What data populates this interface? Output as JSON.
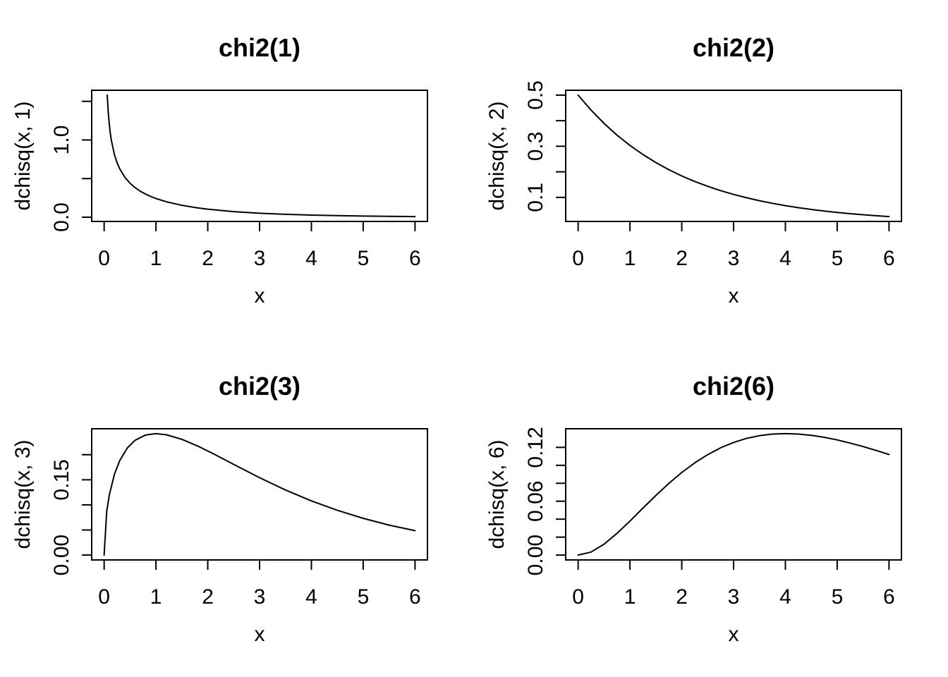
{
  "figure": {
    "background": "#ffffff",
    "foreground": "#000000",
    "description": "2x2 grid of chi-squared probability density curves (R base graphics style)"
  },
  "chart_data": [
    {
      "type": "line",
      "title": "chi2(1)",
      "xlabel": "x",
      "ylabel": "dchisq(x, 1)",
      "line_color": "#000000",
      "grid": false,
      "legend": null,
      "xlim": [
        0,
        6
      ],
      "ylim": [
        0.0081,
        1.5805
      ],
      "x_ticks": [
        0,
        1,
        2,
        3,
        4,
        5,
        6
      ],
      "x_tick_labels": [
        "0",
        "1",
        "2",
        "3",
        "4",
        "5",
        "6"
      ],
      "y_ticks": [
        0.0,
        0.5,
        1.0,
        1.5
      ],
      "y_tick_labels": [
        "0.0",
        "",
        "1.0",
        ""
      ],
      "x": [
        0.06,
        0.08,
        0.1,
        0.12,
        0.14,
        0.2,
        0.25,
        0.3,
        0.4,
        0.5,
        0.6,
        0.7,
        0.8,
        0.9,
        1.0,
        1.2,
        1.5,
        1.75,
        2.0,
        2.5,
        3.0,
        3.5,
        4.0,
        4.5,
        5.0,
        5.5,
        6.0
      ],
      "y": [
        1.5805,
        1.3552,
        1.2,
        1.0845,
        0.9941,
        0.8072,
        0.7041,
        0.6269,
        0.5164,
        0.4394,
        0.3815,
        0.336,
        0.299,
        0.2681,
        0.242,
        0.1999,
        0.1539,
        0.1257,
        0.1038,
        0.0723,
        0.0514,
        0.0371,
        0.027,
        0.0198,
        0.0146,
        0.0109,
        0.0081
      ]
    },
    {
      "type": "line",
      "title": "chi2(2)",
      "xlabel": "x",
      "ylabel": "dchisq(x, 2)",
      "line_color": "#000000",
      "grid": false,
      "legend": null,
      "xlim": [
        0,
        6
      ],
      "ylim": [
        0.0249,
        0.5
      ],
      "x_ticks": [
        0,
        1,
        2,
        3,
        4,
        5,
        6
      ],
      "x_tick_labels": [
        "0",
        "1",
        "2",
        "3",
        "4",
        "5",
        "6"
      ],
      "y_ticks": [
        0.1,
        0.2,
        0.3,
        0.4,
        0.5
      ],
      "y_tick_labels": [
        "0.1",
        "",
        "0.3",
        "",
        "0.5"
      ],
      "x": [
        0.0,
        0.25,
        0.5,
        0.75,
        1.0,
        1.25,
        1.5,
        1.75,
        2.0,
        2.25,
        2.5,
        2.75,
        3.0,
        3.25,
        3.5,
        3.75,
        4.0,
        4.25,
        4.5,
        4.75,
        5.0,
        5.25,
        5.5,
        5.75,
        6.0
      ],
      "y": [
        0.5,
        0.4413,
        0.3894,
        0.3436,
        0.3033,
        0.2676,
        0.2362,
        0.2084,
        0.1839,
        0.1623,
        0.1433,
        0.1264,
        0.1116,
        0.0985,
        0.0869,
        0.0767,
        0.0677,
        0.0597,
        0.0527,
        0.0465,
        0.041,
        0.0362,
        0.032,
        0.0282,
        0.0249
      ]
    },
    {
      "type": "line",
      "title": "chi2(3)",
      "xlabel": "x",
      "ylabel": "dchisq(x, 3)",
      "line_color": "#000000",
      "grid": false,
      "legend": null,
      "xlim": [
        0,
        6
      ],
      "ylim": [
        0,
        0.242
      ],
      "x_ticks": [
        0,
        1,
        2,
        3,
        4,
        5,
        6
      ],
      "x_tick_labels": [
        "0",
        "1",
        "2",
        "3",
        "4",
        "5",
        "6"
      ],
      "y_ticks": [
        0.0,
        0.05,
        0.1,
        0.15,
        0.2
      ],
      "y_tick_labels": [
        "0.00",
        "",
        "",
        "0.15",
        ""
      ],
      "x": [
        0.0,
        0.05,
        0.1,
        0.2,
        0.3,
        0.45,
        0.6,
        0.8,
        1.0,
        1.2,
        1.5,
        1.8,
        2.1,
        2.5,
        3.0,
        3.5,
        4.0,
        4.5,
        5.0,
        5.5,
        6.0
      ],
      "y": [
        0.0,
        0.087,
        0.12,
        0.1614,
        0.1881,
        0.2137,
        0.2289,
        0.2392,
        0.242,
        0.2398,
        0.2308,
        0.2176,
        0.2023,
        0.1807,
        0.1542,
        0.1297,
        0.108,
        0.0892,
        0.0732,
        0.0598,
        0.0487
      ]
    },
    {
      "type": "line",
      "title": "chi2(6)",
      "xlabel": "x",
      "ylabel": "dchisq(x, 6)",
      "line_color": "#000000",
      "grid": false,
      "legend": null,
      "xlim": [
        0,
        6
      ],
      "ylim": [
        0,
        0.1353
      ],
      "x_ticks": [
        0,
        1,
        2,
        3,
        4,
        5,
        6
      ],
      "x_tick_labels": [
        "0",
        "1",
        "2",
        "3",
        "4",
        "5",
        "6"
      ],
      "y_ticks": [
        0.0,
        0.02,
        0.04,
        0.06,
        0.08,
        0.1,
        0.12
      ],
      "y_tick_labels": [
        "0.00",
        "",
        "",
        "0.06",
        "",
        "",
        "0.12"
      ],
      "x": [
        0.0,
        0.25,
        0.5,
        0.75,
        1.0,
        1.25,
        1.5,
        1.75,
        2.0,
        2.25,
        2.5,
        2.75,
        3.0,
        3.25,
        3.5,
        3.75,
        4.0,
        4.25,
        4.5,
        4.75,
        5.0,
        5.25,
        5.5,
        5.75,
        6.0
      ],
      "y": [
        0.0,
        0.0034,
        0.0122,
        0.0242,
        0.0379,
        0.0523,
        0.0664,
        0.0798,
        0.092,
        0.1027,
        0.1119,
        0.1195,
        0.1255,
        0.13,
        0.133,
        0.1348,
        0.1353,
        0.1348,
        0.1334,
        0.1312,
        0.1283,
        0.1248,
        0.1209,
        0.1166,
        0.112
      ]
    }
  ]
}
